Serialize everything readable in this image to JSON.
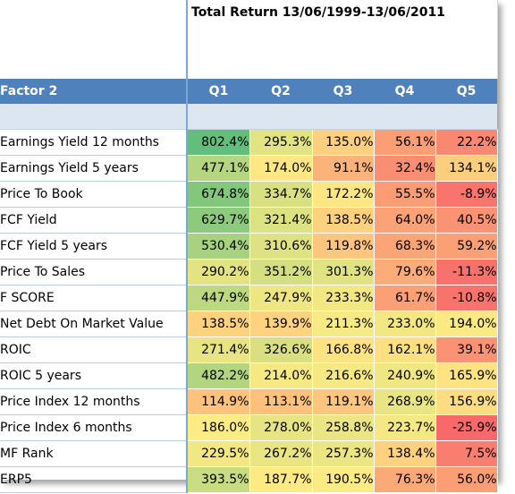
{
  "title": "Total Return 13/06/1999-13/06/2011",
  "header": {
    "factor_label": "Factor 2",
    "quintiles": [
      "Q1",
      "Q2",
      "Q3",
      "Q4",
      "Q5"
    ]
  },
  "chart_data": {
    "type": "table",
    "title": "Total Return 13/06/1999-13/06/2011",
    "row_header": "Factor 2",
    "columns": [
      "Q1",
      "Q2",
      "Q3",
      "Q4",
      "Q5"
    ],
    "unit": "%",
    "rows": [
      {
        "label": "Earnings Yield 12 months",
        "values": [
          802.4,
          295.3,
          135.0,
          56.1,
          22.2
        ]
      },
      {
        "label": "Earnings Yield 5 years",
        "values": [
          477.1,
          174.0,
          91.1,
          32.4,
          134.1
        ]
      },
      {
        "label": "Price To Book",
        "values": [
          674.8,
          334.7,
          172.2,
          55.5,
          -8.9
        ]
      },
      {
        "label": "FCF Yield",
        "values": [
          629.7,
          321.4,
          138.5,
          64.0,
          40.5
        ]
      },
      {
        "label": "FCF Yield 5 years",
        "values": [
          530.4,
          310.6,
          119.8,
          68.3,
          59.2
        ]
      },
      {
        "label": "Price To Sales",
        "values": [
          290.2,
          351.2,
          301.3,
          79.6,
          -11.3
        ]
      },
      {
        "label": "F SCORE",
        "values": [
          447.9,
          247.9,
          233.3,
          61.7,
          -10.8
        ]
      },
      {
        "label": "Net Debt On Market Value",
        "values": [
          138.5,
          139.9,
          211.3,
          233.0,
          194.0
        ]
      },
      {
        "label": "ROIC",
        "values": [
          271.4,
          326.6,
          166.8,
          162.1,
          39.1
        ]
      },
      {
        "label": "ROIC 5 years",
        "values": [
          482.2,
          214.0,
          216.6,
          240.9,
          165.9
        ]
      },
      {
        "label": "Price Index 12 months",
        "values": [
          114.9,
          113.1,
          119.1,
          268.9,
          156.9
        ]
      },
      {
        "label": "Price Index 6 months",
        "values": [
          186.0,
          278.0,
          258.8,
          223.7,
          -25.9
        ]
      },
      {
        "label": "MF Rank",
        "values": [
          229.5,
          267.2,
          257.3,
          138.4,
          7.5
        ]
      },
      {
        "label": "ERP5",
        "values": [
          393.5,
          187.7,
          190.5,
          76.3,
          56.0
        ]
      }
    ],
    "color_scale": {
      "low": "#f8696b",
      "mid": "#ffeb84",
      "high": "#63be7b"
    }
  }
}
